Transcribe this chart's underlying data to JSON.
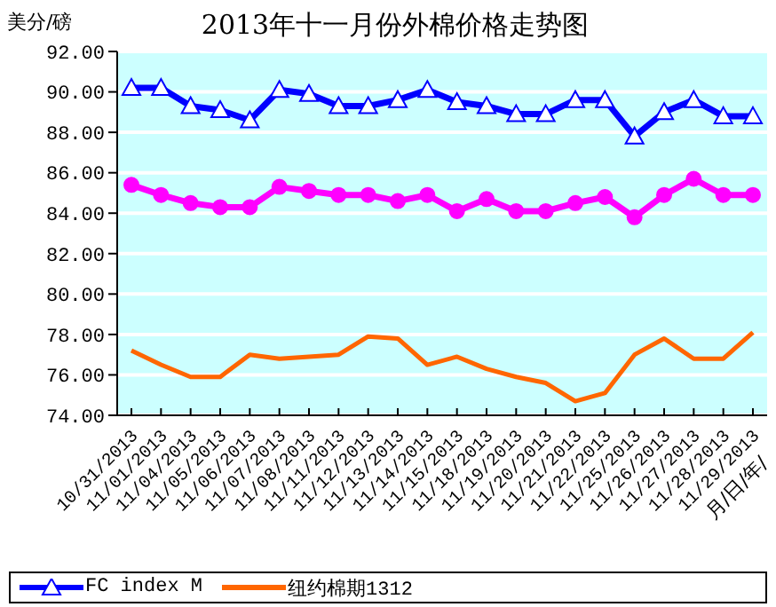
{
  "chart_data": {
    "type": "line",
    "title": "2013年十一月份外棉价格走势图",
    "ylabel": "美分/磅",
    "xlabel": "月/日/年/",
    "categories": [
      "10/31/2013",
      "11/01/2013",
      "11/04/2013",
      "11/05/2013",
      "11/06/2013",
      "11/07/2013",
      "11/08/2013",
      "11/11/2013",
      "11/12/2013",
      "11/13/2013",
      "11/14/2013",
      "11/15/2013",
      "11/18/2013",
      "11/19/2013",
      "11/20/2013",
      "11/21/2013",
      "11/22/2013",
      "11/25/2013",
      "11/26/2013",
      "11/27/2013",
      "11/28/2013",
      "11/29/2013"
    ],
    "series": [
      {
        "name": "FC index M",
        "color": "#0000ff",
        "marker": "triangle",
        "values": [
          90.2,
          90.2,
          89.3,
          89.1,
          88.6,
          90.1,
          89.9,
          89.3,
          89.3,
          89.6,
          90.1,
          89.5,
          89.3,
          88.9,
          88.9,
          89.6,
          89.6,
          87.8,
          89.0,
          89.6,
          88.8,
          88.8
        ]
      },
      {
        "color": "#ff00ff",
        "marker": "circle",
        "values": [
          85.4,
          84.9,
          84.5,
          84.3,
          84.3,
          85.3,
          85.1,
          84.9,
          84.9,
          84.6,
          84.9,
          84.1,
          84.7,
          84.1,
          84.1,
          84.5,
          84.8,
          83.8,
          84.9,
          85.7,
          84.9,
          84.9
        ]
      },
      {
        "name": "纽约棉期1312",
        "color": "#ff6600",
        "marker": "none",
        "values": [
          77.2,
          76.5,
          75.9,
          75.9,
          77.0,
          76.8,
          76.9,
          77.0,
          77.9,
          77.8,
          76.5,
          76.9,
          76.3,
          75.9,
          75.6,
          74.7,
          75.1,
          77.0,
          77.8,
          76.8,
          76.8,
          78.1
        ]
      }
    ],
    "ylim": [
      74,
      92
    ],
    "yticks": [
      {
        "value": 74,
        "label": "74.00"
      },
      {
        "value": 76,
        "label": "76.00"
      },
      {
        "value": 78,
        "label": "78.00"
      },
      {
        "value": 80,
        "label": "80.00"
      },
      {
        "value": 82,
        "label": "82.00"
      },
      {
        "value": 84,
        "label": "84.00"
      },
      {
        "value": 86,
        "label": "86.00"
      },
      {
        "value": 88,
        "label": "88.00"
      },
      {
        "value": 90,
        "label": "90.00"
      },
      {
        "value": 92,
        "label": "92.00"
      }
    ],
    "grid": "y",
    "legend": "bottom"
  }
}
